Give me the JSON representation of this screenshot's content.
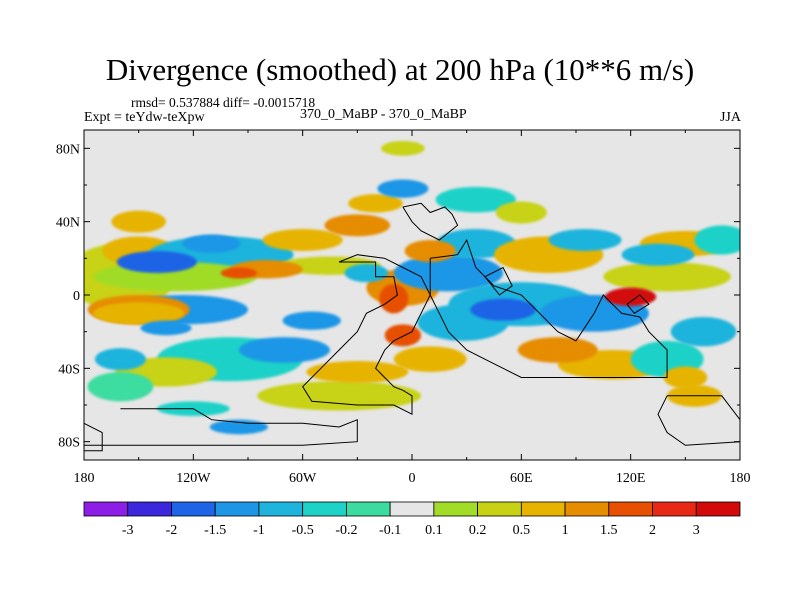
{
  "chart_data": {
    "type": "heatmap",
    "title": "Divergence (smoothed) at 200 hPa (10**6 m/s)",
    "stats": "rmsd= 0.537884  diff= -0.0015718",
    "left_label": "Expt = teYdw-teXpw",
    "center_label": "370_0_MaBP - 370_0_MaBP",
    "right_label": "JJA",
    "x_ticks": [
      "180",
      "120W",
      "60W",
      "0",
      "60E",
      "120E",
      "180"
    ],
    "y_ticks": [
      "80N",
      "40N",
      "0",
      "40S",
      "80S"
    ],
    "xlim": [
      -180,
      180
    ],
    "ylim": [
      -90,
      90
    ],
    "x_tick_values": [
      -180,
      -120,
      -60,
      0,
      60,
      120,
      180
    ],
    "y_tick_values": [
      80,
      40,
      0,
      -40,
      -80
    ],
    "colorbar": {
      "labels": [
        "-3",
        "-2",
        "-1.5",
        "-1",
        "-0.5",
        "-0.2",
        "-0.1",
        "0.1",
        "0.2",
        "0.5",
        "1",
        "1.5",
        "2",
        "3"
      ],
      "colors": [
        "#8c1ee6",
        "#3c28dc",
        "#1e64e6",
        "#1e96e6",
        "#1eb4dc",
        "#1ed2c8",
        "#3cdca0",
        "#e6e6e6",
        "#a0dc28",
        "#c8d214",
        "#e6b400",
        "#e68c00",
        "#e65000",
        "#e62814",
        "#d20a0a"
      ]
    },
    "blobs": [
      {
        "lon": -140,
        "lat": 18,
        "rx": 22,
        "ry": 6,
        "level": 2
      },
      {
        "lon": -110,
        "lat": 28,
        "rx": 16,
        "ry": 5,
        "level": 3
      },
      {
        "lon": -80,
        "lat": 14,
        "rx": 20,
        "ry": 5,
        "level": 11
      },
      {
        "lon": -95,
        "lat": 12,
        "rx": 10,
        "ry": 3,
        "level": 12
      },
      {
        "lon": -150,
        "lat": -10,
        "rx": 25,
        "ry": 6,
        "level": 10
      },
      {
        "lon": -135,
        "lat": -18,
        "rx": 14,
        "ry": 4,
        "level": 3
      },
      {
        "lon": -55,
        "lat": -14,
        "rx": 16,
        "ry": 5,
        "level": 3
      },
      {
        "lon": -10,
        "lat": -2,
        "rx": 8,
        "ry": 8,
        "level": 12
      },
      {
        "lon": -5,
        "lat": -22,
        "rx": 10,
        "ry": 6,
        "level": 12
      },
      {
        "lon": 50,
        "lat": -8,
        "rx": 18,
        "ry": 6,
        "level": 2
      },
      {
        "lon": 80,
        "lat": -30,
        "rx": 22,
        "ry": 7,
        "level": 11
      },
      {
        "lon": 120,
        "lat": -1,
        "rx": 14,
        "ry": 5,
        "level": 14
      },
      {
        "lon": 135,
        "lat": 22,
        "rx": 20,
        "ry": 6,
        "level": 4
      },
      {
        "lon": 160,
        "lat": -20,
        "rx": 18,
        "ry": 8,
        "level": 4
      },
      {
        "lon": 150,
        "lat": -45,
        "rx": 12,
        "ry": 6,
        "level": 10
      },
      {
        "lon": 10,
        "lat": 24,
        "rx": 14,
        "ry": 6,
        "level": 11
      },
      {
        "lon": -160,
        "lat": -35,
        "rx": 14,
        "ry": 6,
        "level": 4
      }
    ]
  }
}
